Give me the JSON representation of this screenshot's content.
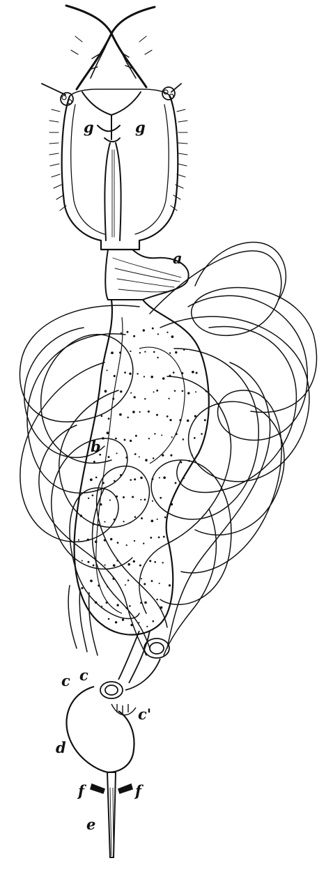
{
  "figure": {
    "labels": {
      "a": "a",
      "b": "b",
      "c1": "c",
      "c2": "c",
      "c_prime": "c'",
      "d": "d",
      "e": "e",
      "f_left": "f",
      "f_right": "f",
      "g_left": "g",
      "g_right": "g"
    },
    "colors": {
      "ink": "#111111",
      "background": "#ffffff"
    }
  }
}
